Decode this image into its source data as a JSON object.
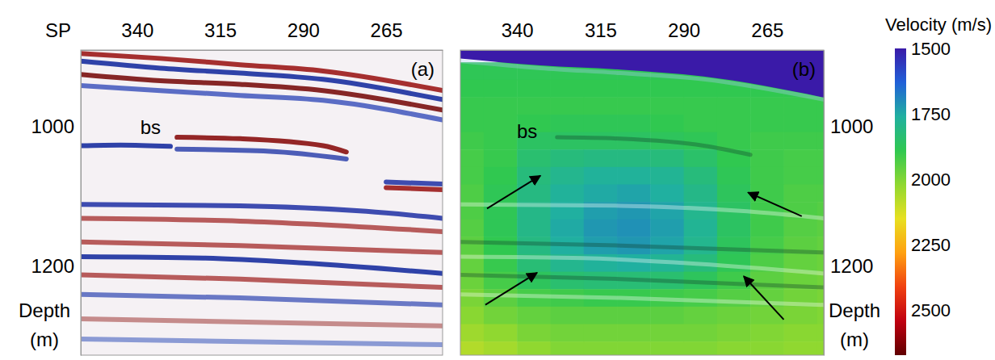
{
  "chart_data": [
    {
      "type": "line",
      "panel_label": "(a)",
      "xlabel": "SP",
      "ylabel": "Depth (m)",
      "xlim": [
        357,
        248
      ],
      "ylim": [
        890,
        1327
      ],
      "xticks": [
        340,
        315,
        290,
        265
      ],
      "yticks": [
        1000,
        1200
      ],
      "annotations": [
        {
          "text": "bs",
          "x": 336,
          "y": 1000
        }
      ],
      "series": [
        {
          "color": "#9c1a1a",
          "x": [
            357,
            333,
            309,
            284,
            248
          ],
          "values": [
            895,
            902,
            911,
            920,
            948
          ]
        },
        {
          "color": "#1a2fa0",
          "x": [
            357,
            333,
            309,
            284,
            248
          ],
          "values": [
            906,
            916,
            923,
            932,
            961
          ]
        },
        {
          "color": "#7a0f0f",
          "x": [
            357,
            333,
            309,
            284,
            248
          ],
          "values": [
            925,
            934,
            939,
            948,
            976
          ]
        },
        {
          "color": "#4a5ec0",
          "x": [
            357,
            333,
            309,
            284,
            248
          ],
          "values": [
            941,
            948,
            955,
            962,
            990
          ]
        },
        {
          "color": "#1a2fa0",
          "x": [
            357,
            345,
            330
          ],
          "values": [
            1027,
            1026,
            1028
          ]
        },
        {
          "color": "#8a1010",
          "x": [
            328,
            309,
            284,
            277
          ],
          "values": [
            1015,
            1017,
            1027,
            1036
          ]
        },
        {
          "color": "#3a4cb0",
          "x": [
            328,
            300,
            277
          ],
          "values": [
            1032,
            1035,
            1046
          ]
        },
        {
          "color": "#2a3aa8",
          "x": [
            357,
            309,
            271,
            248
          ],
          "values": [
            1111,
            1113,
            1121,
            1131
          ]
        },
        {
          "color": "#2a3aa8",
          "x": [
            265,
            248
          ],
          "values": [
            1079,
            1082
          ]
        },
        {
          "color": "#9c1a1a",
          "x": [
            265,
            248
          ],
          "values": [
            1087,
            1090
          ]
        },
        {
          "color": "#b04a4a",
          "x": [
            357,
            309,
            248
          ],
          "values": [
            1131,
            1135,
            1150
          ]
        },
        {
          "color": "#b04a4a",
          "x": [
            357,
            309,
            248
          ],
          "values": [
            1165,
            1170,
            1180
          ]
        },
        {
          "color": "#1a2fa0",
          "x": [
            357,
            320,
            290,
            248
          ],
          "values": [
            1186,
            1188,
            1195,
            1210
          ]
        },
        {
          "color": "#b04a4a",
          "x": [
            357,
            309,
            248
          ],
          "values": [
            1212,
            1218,
            1230
          ]
        },
        {
          "color": "#5a6ac0",
          "x": [
            357,
            309,
            248
          ],
          "values": [
            1240,
            1245,
            1255
          ]
        },
        {
          "color": "#c08080",
          "x": [
            357,
            248
          ],
          "values": [
            1275,
            1285
          ]
        },
        {
          "color": "#8090d0",
          "x": [
            357,
            248
          ],
          "values": [
            1304,
            1312
          ]
        }
      ]
    },
    {
      "type": "heatmap",
      "panel_label": "(b)",
      "ylabel": "Depth (m)",
      "xlim": [
        357,
        248
      ],
      "ylim": [
        890,
        1327
      ],
      "xticks": [
        340,
        315,
        290,
        265
      ],
      "yticks": [
        1000,
        1200
      ],
      "annotations": [
        {
          "text": "bs",
          "x": 337,
          "y": 1006
        }
      ],
      "arrows": [
        {
          "from": [
            349,
            1117
          ],
          "to": [
            333,
            1070
          ]
        },
        {
          "from": [
            349.5,
            1255
          ],
          "to": [
            334,
            1209
          ]
        },
        {
          "from": [
            254.6,
            1128
          ],
          "to": [
            270.7,
            1094
          ]
        },
        {
          "from": [
            260,
            1276
          ],
          "to": [
            272,
            1214
          ]
        }
      ],
      "water_velocity": 1500,
      "seafloor": {
        "x": [
          357,
          333,
          309,
          284,
          248
        ],
        "values": [
          902,
          912,
          918,
          928,
          958
        ]
      },
      "x": [
        355,
        345,
        335,
        325,
        315,
        305,
        295,
        285,
        275,
        265,
        255,
        245
      ],
      "y": [
        920,
        945,
        970,
        995,
        1020,
        1045,
        1070,
        1095,
        1120,
        1145,
        1170,
        1195,
        1220,
        1245,
        1270,
        1295,
        1320
      ],
      "cells": [
        [
          1880,
          1880,
          1880,
          1880,
          1880,
          1880,
          1880,
          1880,
          1880,
          1880,
          1880,
          1880
        ],
        [
          1890,
          1890,
          1890,
          1890,
          1890,
          1890,
          1890,
          1890,
          1890,
          1890,
          1890,
          1890
        ],
        [
          1900,
          1900,
          1900,
          1900,
          1900,
          1900,
          1900,
          1900,
          1900,
          1900,
          1900,
          1900
        ],
        [
          1900,
          1900,
          1890,
          1880,
          1880,
          1880,
          1890,
          1900,
          1900,
          1900,
          1900,
          1900
        ],
        [
          1910,
          1900,
          1860,
          1860,
          1860,
          1860,
          1870,
          1880,
          1900,
          1910,
          1910,
          1910
        ],
        [
          1920,
          1900,
          1840,
          1820,
          1810,
          1810,
          1820,
          1850,
          1890,
          1910,
          1920,
          1920
        ],
        [
          1920,
          1890,
          1820,
          1790,
          1770,
          1770,
          1780,
          1820,
          1880,
          1910,
          1920,
          1920
        ],
        [
          1930,
          1880,
          1810,
          1770,
          1750,
          1740,
          1760,
          1800,
          1870,
          1910,
          1930,
          1930
        ],
        [
          1930,
          1880,
          1800,
          1760,
          1730,
          1720,
          1740,
          1790,
          1860,
          1910,
          1930,
          1940
        ],
        [
          1940,
          1880,
          1800,
          1750,
          1720,
          1710,
          1730,
          1780,
          1860,
          1910,
          1940,
          1950
        ],
        [
          1950,
          1890,
          1810,
          1760,
          1730,
          1720,
          1740,
          1790,
          1870,
          1920,
          1950,
          1960
        ],
        [
          1960,
          1900,
          1830,
          1790,
          1770,
          1760,
          1780,
          1820,
          1880,
          1930,
          1960,
          1970
        ],
        [
          1970,
          1920,
          1870,
          1840,
          1830,
          1830,
          1840,
          1870,
          1910,
          1950,
          1970,
          1980
        ],
        [
          1990,
          1950,
          1920,
          1910,
          1900,
          1900,
          1910,
          1920,
          1940,
          1960,
          1980,
          1990
        ],
        [
          2010,
          1980,
          1960,
          1950,
          1950,
          1950,
          1950,
          1960,
          1970,
          1980,
          1990,
          2000
        ],
        [
          2040,
          2020,
          1990,
          1980,
          1980,
          1980,
          1980,
          1980,
          1990,
          2000,
          2010,
          2010
        ],
        [
          2070,
          2050,
          2020,
          2000,
          2000,
          2000,
          2000,
          2000,
          2010,
          2010,
          2020,
          2020
        ]
      ],
      "series": [
        {
          "color": "#a8ccf2",
          "x": [
            357,
            333,
            309,
            284,
            248
          ],
          "values": [
            906,
            916,
            923,
            932,
            961
          ]
        },
        {
          "color": "#12402a",
          "x": [
            328,
            309,
            284,
            270
          ],
          "values": [
            1015,
            1017,
            1027,
            1040
          ]
        },
        {
          "color": "#ffffff",
          "x": [
            357,
            309,
            271,
            248
          ],
          "values": [
            1111,
            1113,
            1121,
            1131
          ]
        },
        {
          "color": "#12402a",
          "x": [
            357,
            309,
            248
          ],
          "values": [
            1165,
            1170,
            1180
          ]
        },
        {
          "color": "#ffffff",
          "x": [
            357,
            320,
            290,
            248
          ],
          "values": [
            1186,
            1188,
            1195,
            1210
          ]
        },
        {
          "color": "#12402a",
          "x": [
            357,
            309,
            248
          ],
          "values": [
            1212,
            1218,
            1230
          ]
        },
        {
          "color": "#ffffff",
          "x": [
            357,
            309,
            248
          ],
          "values": [
            1240,
            1245,
            1255
          ]
        }
      ],
      "colorbar": {
        "label": "Velocity (m/s)",
        "range": [
          1500,
          2670
        ],
        "ticks": [
          1500,
          1750,
          2000,
          2250,
          2500
        ],
        "colors": [
          "#3a1aa8",
          "#2060d8",
          "#20b0a0",
          "#30c850",
          "#90d830",
          "#e8e020",
          "#ffa010",
          "#f04010",
          "#c00010",
          "#600000"
        ]
      }
    }
  ]
}
